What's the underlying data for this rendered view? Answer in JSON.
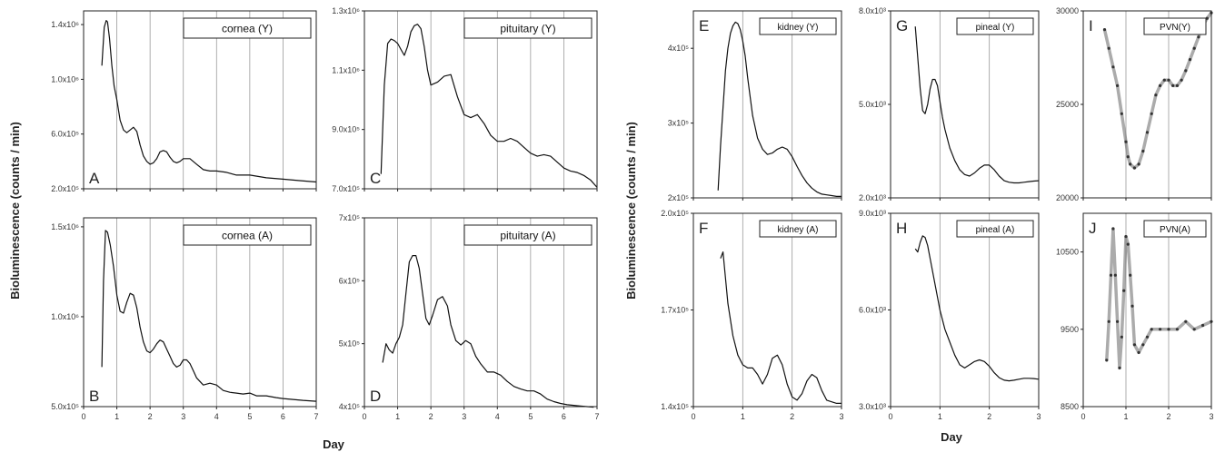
{
  "figure": {
    "ylabel_left": "Bioluminescence (counts / min)",
    "xlabel_left": "Day",
    "ylabel_right": "Bioluminescence (counts / min)",
    "xlabel_right": "Day"
  },
  "chart_data": [
    {
      "id": "A",
      "type": "line",
      "panel_label": "A",
      "box_label": "cornea (Y)",
      "xlim": [
        0,
        7
      ],
      "ylim": [
        200000,
        1500000
      ],
      "xticks": [
        0,
        1,
        2,
        3,
        4,
        5,
        6,
        7
      ],
      "xtick_labels": [],
      "yticks": [
        200000,
        600000,
        1000000,
        1400000
      ],
      "ytick_labels": [
        "2.0x10⁵",
        "6.0x10⁵",
        "1.0x10⁶",
        "1.4x10⁶"
      ],
      "vlines": [
        1,
        2,
        3,
        4,
        5,
        6
      ],
      "x": [
        0.55,
        0.62,
        0.68,
        0.72,
        0.78,
        0.85,
        0.92,
        1.0,
        1.1,
        1.2,
        1.3,
        1.4,
        1.5,
        1.6,
        1.7,
        1.8,
        1.9,
        2.0,
        2.1,
        2.2,
        2.3,
        2.4,
        2.5,
        2.6,
        2.7,
        2.8,
        2.9,
        3.0,
        3.2,
        3.4,
        3.6,
        3.8,
        4.0,
        4.3,
        4.6,
        5.0,
        5.5,
        6.0,
        6.5,
        7.0
      ],
      "y": [
        1100000,
        1380000,
        1430000,
        1420000,
        1300000,
        1100000,
        950000,
        850000,
        700000,
        630000,
        610000,
        630000,
        650000,
        620000,
        520000,
        440000,
        400000,
        380000,
        390000,
        420000,
        470000,
        480000,
        470000,
        430000,
        400000,
        390000,
        400000,
        420000,
        420000,
        380000,
        340000,
        330000,
        330000,
        320000,
        300000,
        300000,
        280000,
        270000,
        260000,
        250000
      ]
    },
    {
      "id": "B",
      "type": "line",
      "panel_label": "B",
      "box_label": "cornea (A)",
      "xlim": [
        0,
        7
      ],
      "ylim": [
        500000,
        1550000
      ],
      "xticks": [
        0,
        1,
        2,
        3,
        4,
        5,
        6,
        7
      ],
      "xtick_labels": [
        "0",
        "1",
        "2",
        "3",
        "4",
        "5",
        "6",
        "7"
      ],
      "yticks": [
        500000,
        1000000,
        1500000
      ],
      "ytick_labels": [
        "5.0x10⁵",
        "1.0x10⁶",
        "1.5x10⁶"
      ],
      "vlines": [
        1,
        2,
        3,
        4,
        5,
        6
      ],
      "x": [
        0.55,
        0.6,
        0.66,
        0.72,
        0.8,
        0.9,
        1.0,
        1.1,
        1.2,
        1.3,
        1.4,
        1.5,
        1.6,
        1.7,
        1.8,
        1.9,
        2.0,
        2.1,
        2.2,
        2.3,
        2.4,
        2.5,
        2.6,
        2.7,
        2.8,
        2.9,
        3.0,
        3.1,
        3.2,
        3.3,
        3.4,
        3.6,
        3.8,
        4.0,
        4.2,
        4.4,
        4.6,
        4.8,
        5.0,
        5.2,
        5.5,
        5.8,
        6.0,
        6.3,
        6.6,
        7.0
      ],
      "y": [
        720000,
        1200000,
        1480000,
        1470000,
        1400000,
        1280000,
        1120000,
        1030000,
        1020000,
        1080000,
        1130000,
        1120000,
        1050000,
        940000,
        860000,
        810000,
        800000,
        820000,
        850000,
        870000,
        860000,
        820000,
        780000,
        740000,
        720000,
        730000,
        760000,
        760000,
        740000,
        700000,
        660000,
        620000,
        630000,
        620000,
        590000,
        580000,
        575000,
        570000,
        575000,
        560000,
        560000,
        550000,
        545000,
        540000,
        535000,
        530000
      ]
    },
    {
      "id": "C",
      "type": "line",
      "panel_label": "C",
      "box_label": "pituitary (Y)",
      "xlim": [
        0,
        7
      ],
      "ylim": [
        700000,
        1300000
      ],
      "xticks": [
        0,
        1,
        2,
        3,
        4,
        5,
        6,
        7
      ],
      "xtick_labels": [],
      "yticks": [
        700000,
        900000,
        1100000,
        1300000
      ],
      "ytick_labels": [
        "7.0x10⁵",
        "9.0x10⁵",
        "1.1x10⁶",
        "1.3x10⁶"
      ],
      "vlines": [
        1,
        2,
        3,
        4,
        5,
        6
      ],
      "x": [
        0.5,
        0.6,
        0.7,
        0.8,
        0.9,
        1.0,
        1.1,
        1.2,
        1.3,
        1.4,
        1.5,
        1.6,
        1.7,
        1.8,
        1.9,
        2.0,
        2.2,
        2.4,
        2.6,
        2.8,
        3.0,
        3.2,
        3.4,
        3.6,
        3.8,
        4.0,
        4.2,
        4.4,
        4.6,
        4.8,
        5.0,
        5.2,
        5.4,
        5.6,
        5.8,
        6.0,
        6.2,
        6.4,
        6.6,
        6.8,
        7.0
      ],
      "y": [
        750000,
        1050000,
        1190000,
        1205000,
        1200000,
        1190000,
        1170000,
        1150000,
        1180000,
        1230000,
        1250000,
        1255000,
        1240000,
        1180000,
        1100000,
        1050000,
        1060000,
        1080000,
        1085000,
        1010000,
        950000,
        940000,
        950000,
        920000,
        880000,
        860000,
        860000,
        870000,
        860000,
        840000,
        820000,
        810000,
        815000,
        810000,
        790000,
        770000,
        760000,
        755000,
        745000,
        730000,
        705000
      ]
    },
    {
      "id": "D",
      "type": "line",
      "panel_label": "D",
      "box_label": "pituitary (A)",
      "xlim": [
        0,
        7
      ],
      "ylim": [
        400000,
        700000
      ],
      "xticks": [
        0,
        1,
        2,
        3,
        4,
        5,
        6,
        7
      ],
      "xtick_labels": [
        "0",
        "1",
        "2",
        "3",
        "4",
        "5",
        "6",
        "7"
      ],
      "yticks": [
        400000,
        500000,
        600000,
        700000
      ],
      "ytick_labels": [
        "4x10⁵",
        "5x10⁵",
        "6x10⁵",
        "7x10⁵"
      ],
      "vlines": [
        1,
        2,
        3,
        4,
        5,
        6
      ],
      "x": [
        0.55,
        0.65,
        0.75,
        0.85,
        0.95,
        1.05,
        1.15,
        1.25,
        1.35,
        1.45,
        1.55,
        1.65,
        1.75,
        1.85,
        1.95,
        2.05,
        2.2,
        2.35,
        2.5,
        2.6,
        2.75,
        2.9,
        3.05,
        3.2,
        3.35,
        3.5,
        3.7,
        3.9,
        4.1,
        4.3,
        4.5,
        4.7,
        4.9,
        5.1,
        5.3,
        5.5,
        5.7,
        5.9,
        6.1,
        6.3,
        6.5,
        6.7,
        6.9
      ],
      "y": [
        470000,
        500000,
        490000,
        485000,
        500000,
        510000,
        530000,
        580000,
        630000,
        640000,
        640000,
        620000,
        580000,
        540000,
        530000,
        545000,
        570000,
        575000,
        560000,
        530000,
        505000,
        498000,
        505000,
        500000,
        480000,
        468000,
        455000,
        455000,
        450000,
        440000,
        432000,
        428000,
        425000,
        425000,
        420000,
        412000,
        408000,
        405000,
        403000,
        402000,
        401000,
        400000,
        399000
      ]
    },
    {
      "id": "E",
      "type": "line",
      "panel_label": "E",
      "box_label": "kidney (Y)",
      "xlim": [
        0,
        3
      ],
      "ylim": [
        200000,
        450000
      ],
      "xticks": [
        0,
        1,
        2,
        3
      ],
      "xtick_labels": [],
      "yticks": [
        200000,
        300000,
        400000
      ],
      "ytick_labels": [
        "2x10⁵",
        "3x10⁵",
        "4x10⁵"
      ],
      "vlines": [
        1,
        2
      ],
      "x": [
        0.5,
        0.55,
        0.6,
        0.65,
        0.7,
        0.75,
        0.8,
        0.85,
        0.9,
        0.95,
        1.0,
        1.05,
        1.1,
        1.2,
        1.3,
        1.4,
        1.5,
        1.6,
        1.7,
        1.8,
        1.9,
        2.0,
        2.1,
        2.2,
        2.3,
        2.4,
        2.5,
        2.6,
        2.7,
        2.8,
        2.9,
        3.0
      ],
      "y": [
        210000,
        270000,
        320000,
        370000,
        400000,
        420000,
        430000,
        435000,
        433000,
        425000,
        410000,
        390000,
        360000,
        310000,
        280000,
        265000,
        258000,
        260000,
        265000,
        268000,
        265000,
        255000,
        242000,
        230000,
        220000,
        213000,
        208000,
        205000,
        204000,
        203000,
        202000,
        202000
      ]
    },
    {
      "id": "F",
      "type": "line",
      "panel_label": "F",
      "box_label": "kidney (A)",
      "xlim": [
        0,
        3
      ],
      "ylim": [
        140000,
        200000
      ],
      "xticks": [
        0,
        1,
        2,
        3
      ],
      "xtick_labels": [
        "0",
        "1",
        "2",
        "3"
      ],
      "yticks": [
        140000,
        170000,
        200000
      ],
      "ytick_labels": [
        "1.4x10⁵",
        "1.7x10⁵",
        "2.0x10⁵"
      ],
      "vlines": [
        1,
        2
      ],
      "x": [
        0.55,
        0.6,
        0.65,
        0.7,
        0.8,
        0.9,
        1.0,
        1.1,
        1.2,
        1.3,
        1.4,
        1.5,
        1.6,
        1.7,
        1.8,
        1.9,
        2.0,
        2.1,
        2.2,
        2.3,
        2.4,
        2.5,
        2.6,
        2.7,
        2.8,
        2.9,
        3.0
      ],
      "y": [
        186000,
        188000,
        180000,
        172000,
        162000,
        156000,
        153000,
        152000,
        152000,
        150000,
        147000,
        150000,
        155000,
        156000,
        153000,
        147000,
        143000,
        142000,
        144000,
        148000,
        150000,
        149000,
        145000,
        142000,
        141500,
        141000,
        141000
      ]
    },
    {
      "id": "G",
      "type": "line",
      "panel_label": "G",
      "box_label": "pineal (Y)",
      "xlim": [
        0,
        3
      ],
      "ylim": [
        2000,
        8000
      ],
      "xticks": [
        0,
        1,
        2,
        3
      ],
      "xtick_labels": [],
      "yticks": [
        2000,
        5000,
        8000
      ],
      "ytick_labels": [
        "2.0x10³",
        "5.0x10³",
        "8.0x10³"
      ],
      "vlines": [
        1,
        2
      ],
      "x": [
        0.5,
        0.55,
        0.6,
        0.65,
        0.7,
        0.75,
        0.8,
        0.85,
        0.9,
        0.95,
        1.0,
        1.05,
        1.1,
        1.2,
        1.3,
        1.4,
        1.5,
        1.6,
        1.7,
        1.8,
        1.9,
        2.0,
        2.1,
        2.2,
        2.3,
        2.4,
        2.5,
        2.6,
        2.7,
        2.8,
        2.9,
        3.0
      ],
      "y": [
        7500,
        6500,
        5500,
        4800,
        4700,
        5000,
        5500,
        5800,
        5800,
        5600,
        5100,
        4600,
        4200,
        3600,
        3200,
        2900,
        2750,
        2700,
        2800,
        2950,
        3050,
        3050,
        2900,
        2700,
        2550,
        2500,
        2480,
        2480,
        2500,
        2520,
        2540,
        2550
      ]
    },
    {
      "id": "H",
      "type": "line",
      "panel_label": "H",
      "box_label": "pineal (A)",
      "xlim": [
        0,
        3
      ],
      "ylim": [
        3000,
        9000
      ],
      "xticks": [
        0,
        1,
        2,
        3
      ],
      "xtick_labels": [
        "0",
        "1",
        "2",
        "3"
      ],
      "yticks": [
        3000,
        6000,
        9000
      ],
      "ytick_labels": [
        "3.0x10³",
        "6.0x10³",
        "9.0x10³"
      ],
      "vlines": [
        1,
        2
      ],
      "x": [
        0.5,
        0.55,
        0.6,
        0.65,
        0.7,
        0.75,
        0.8,
        0.85,
        0.9,
        0.95,
        1.0,
        1.1,
        1.2,
        1.3,
        1.4,
        1.5,
        1.6,
        1.7,
        1.8,
        1.9,
        2.0,
        2.1,
        2.2,
        2.3,
        2.4,
        2.5,
        2.6,
        2.7,
        2.8,
        2.9,
        3.0
      ],
      "y": [
        7900,
        7800,
        8100,
        8300,
        8250,
        8000,
        7600,
        7200,
        6800,
        6400,
        6000,
        5400,
        5000,
        4600,
        4300,
        4200,
        4300,
        4400,
        4450,
        4400,
        4250,
        4050,
        3900,
        3820,
        3800,
        3820,
        3850,
        3880,
        3880,
        3870,
        3850
      ]
    },
    {
      "id": "I",
      "type": "scatter",
      "panel_label": "I",
      "box_label": "PVN(Y)",
      "xlim": [
        0,
        3
      ],
      "ylim": [
        20000,
        30000
      ],
      "xticks": [
        0,
        1,
        2,
        3
      ],
      "xtick_labels": [],
      "yticks": [
        20000,
        25000,
        30000
      ],
      "ytick_labels": [
        "20000",
        "25000",
        "30000"
      ],
      "vlines": [
        1,
        2
      ],
      "x": [
        0.5,
        0.6,
        0.7,
        0.8,
        0.9,
        1.0,
        1.05,
        1.1,
        1.2,
        1.3,
        1.4,
        1.5,
        1.6,
        1.7,
        1.8,
        1.9,
        2.0,
        2.1,
        2.2,
        2.3,
        2.4,
        2.5,
        2.6,
        2.7,
        2.8,
        2.9,
        3.0
      ],
      "y": [
        29000,
        28000,
        27000,
        26000,
        24500,
        23000,
        22200,
        21800,
        21600,
        21800,
        22500,
        23500,
        24500,
        25500,
        26000,
        26300,
        26300,
        26000,
        26000,
        26300,
        26800,
        27400,
        28000,
        28600,
        29200,
        29600,
        29900
      ]
    },
    {
      "id": "J",
      "type": "scatter",
      "panel_label": "J",
      "box_label": "PVN(A)",
      "xlim": [
        0,
        3
      ],
      "ylim": [
        8500,
        11000
      ],
      "xticks": [
        0,
        1,
        2,
        3
      ],
      "xtick_labels": [
        "0",
        "1",
        "2",
        "3"
      ],
      "yticks": [
        8500,
        9500,
        10500
      ],
      "ytick_labels": [
        "8500",
        "9500",
        "10500"
      ],
      "vlines": [
        1,
        2
      ],
      "x": [
        0.55,
        0.6,
        0.65,
        0.7,
        0.75,
        0.8,
        0.85,
        0.9,
        0.95,
        1.0,
        1.05,
        1.1,
        1.15,
        1.2,
        1.3,
        1.4,
        1.5,
        1.6,
        1.8,
        2.0,
        2.2,
        2.4,
        2.6,
        2.8,
        3.0
      ],
      "y": [
        9100,
        9600,
        10200,
        10800,
        10200,
        9600,
        9000,
        9400,
        10000,
        10700,
        10600,
        10200,
        9800,
        9300,
        9200,
        9300,
        9400,
        9500,
        9500,
        9500,
        9500,
        9600,
        9500,
        9550,
        9600
      ]
    }
  ]
}
